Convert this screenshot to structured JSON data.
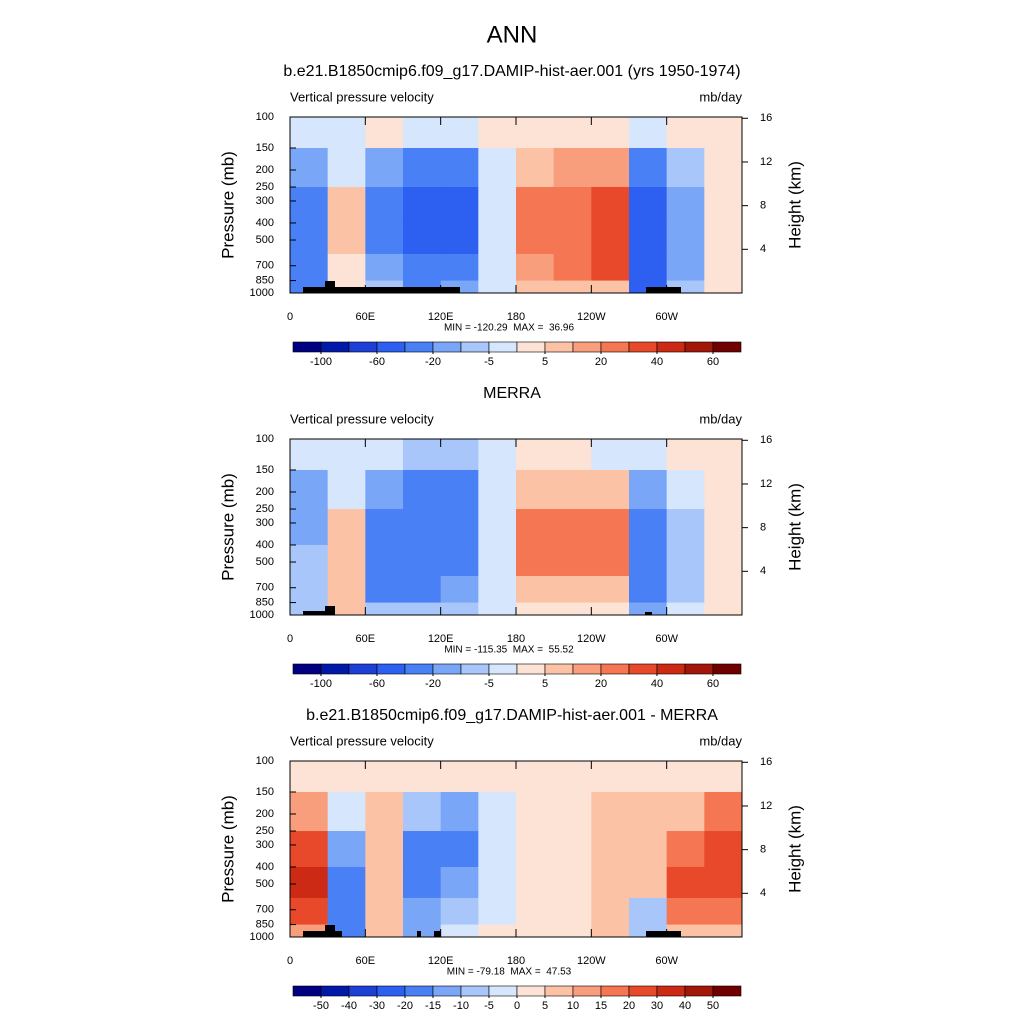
{
  "title": "ANN",
  "chart_data": [
    {
      "type": "contour",
      "title": "b.e21.B1850cmip6.f09_g17.DAMIP-hist-aer.001 (yrs 1950-1974)",
      "left_string": "Vertical pressure velocity",
      "right_string": "mb/day",
      "ylabel": "Pressure (mb)",
      "y2label": "Height (km)",
      "stats": "MIN = -120.29  MAX =  36.96",
      "xlim": [
        0,
        360
      ],
      "xticks": [
        0,
        {
          "value": 60,
          "label": "60E"
        },
        {
          "value": 120,
          "label": "120E"
        },
        180,
        {
          "value": 240,
          "label": "120W"
        },
        {
          "value": 300,
          "label": "60W"
        }
      ],
      "ylim": [
        100,
        1000
      ],
      "log_y": true,
      "yticks": [
        100,
        150,
        200,
        250,
        300,
        400,
        500,
        700,
        850,
        1000
      ],
      "y2ticks": [
        4,
        8,
        12,
        16
      ],
      "x_edges": [
        0,
        30,
        60,
        90,
        120,
        150,
        180,
        210,
        240,
        270,
        300,
        330,
        360
      ],
      "y_edges": [
        100,
        150,
        250,
        400,
        600,
        850,
        1000
      ],
      "z": [
        [
          -3,
          -3,
          2,
          -5,
          -5,
          2,
          3,
          3,
          3,
          -5,
          2,
          2
        ],
        [
          -20,
          -5,
          -20,
          -40,
          -40,
          -5,
          10,
          15,
          15,
          -30,
          -10,
          2
        ],
        [
          -40,
          5,
          -40,
          -60,
          -60,
          -5,
          20,
          25,
          30,
          -50,
          -20,
          2
        ],
        [
          -40,
          5,
          -40,
          -60,
          -50,
          -5,
          20,
          25,
          35,
          -50,
          -20,
          2
        ],
        [
          -40,
          3,
          -20,
          -40,
          -40,
          -5,
          15,
          20,
          30,
          -60,
          -20,
          2
        ],
        [
          -30,
          0,
          -10,
          -40,
          -20,
          -5,
          5,
          10,
          10,
          -60,
          -10,
          0
        ]
      ],
      "colorbar_ticks": [
        -100,
        -60,
        -20,
        -5,
        5,
        20,
        40,
        60
      ],
      "colors": [
        "#000080",
        "#0019a8",
        "#1e3fd6",
        "#2d5ff0",
        "#4a80f5",
        "#7aa6f8",
        "#a8c6fa",
        "#d6e6fd",
        "#fde3d5",
        "#fbc2a6",
        "#f89e7c",
        "#f47652",
        "#e8492a",
        "#cc2a14",
        "#a3160a",
        "#700000"
      ]
    },
    {
      "type": "contour",
      "title": "MERRA",
      "left_string": "Vertical pressure velocity",
      "right_string": "mb/day",
      "ylabel": "Pressure (mb)",
      "y2label": "Height (km)",
      "stats": "MIN = -115.35  MAX =  55.52",
      "xlim": [
        0,
        360
      ],
      "xticks": [
        0,
        {
          "value": 60,
          "label": "60E"
        },
        {
          "value": 120,
          "label": "120E"
        },
        180,
        {
          "value": 240,
          "label": "120W"
        },
        {
          "value": 300,
          "label": "60W"
        }
      ],
      "ylim": [
        100,
        1000
      ],
      "log_y": true,
      "yticks": [
        100,
        150,
        200,
        250,
        300,
        400,
        500,
        700,
        850,
        1000
      ],
      "y2ticks": [
        4,
        8,
        12,
        16
      ],
      "x_edges": [
        0,
        30,
        60,
        90,
        120,
        150,
        180,
        210,
        240,
        270,
        300,
        330,
        360
      ],
      "y_edges": [
        100,
        150,
        250,
        400,
        600,
        850,
        1000
      ],
      "z": [
        [
          -5,
          -5,
          -5,
          -10,
          -10,
          -3,
          3,
          3,
          -3,
          -3,
          3,
          3
        ],
        [
          -20,
          -5,
          -20,
          -30,
          -30,
          -5,
          5,
          10,
          5,
          -20,
          -5,
          2
        ],
        [
          -20,
          5,
          -30,
          -40,
          -40,
          -5,
          20,
          25,
          20,
          -40,
          -10,
          2
        ],
        [
          -10,
          10,
          -30,
          -40,
          -40,
          -5,
          20,
          25,
          20,
          -40,
          -10,
          2
        ],
        [
          -10,
          10,
          -30,
          -30,
          -20,
          -5,
          5,
          10,
          5,
          -40,
          -10,
          2
        ],
        [
          -10,
          5,
          -10,
          -10,
          -10,
          -5,
          2,
          2,
          2,
          -20,
          -5,
          0
        ]
      ],
      "colorbar_ticks": [
        -100,
        -60,
        -20,
        -5,
        5,
        20,
        40,
        60
      ],
      "colors": [
        "#000080",
        "#0019a8",
        "#1e3fd6",
        "#2d5ff0",
        "#4a80f5",
        "#7aa6f8",
        "#a8c6fa",
        "#d6e6fd",
        "#fde3d5",
        "#fbc2a6",
        "#f89e7c",
        "#f47652",
        "#e8492a",
        "#cc2a14",
        "#a3160a",
        "#700000"
      ]
    },
    {
      "type": "contour",
      "title": "b.e21.B1850cmip6.f09_g17.DAMIP-hist-aer.001 - MERRA",
      "left_string": "Vertical pressure velocity",
      "right_string": "mb/day",
      "ylabel": "Pressure (mb)",
      "y2label": "Height (km)",
      "stats": "MIN = -79.18  MAX =  47.53",
      "xlim": [
        0,
        360
      ],
      "xticks": [
        0,
        {
          "value": 60,
          "label": "60E"
        },
        {
          "value": 120,
          "label": "120E"
        },
        180,
        {
          "value": 240,
          "label": "120W"
        },
        {
          "value": 300,
          "label": "60W"
        }
      ],
      "ylim": [
        100,
        1000
      ],
      "log_y": true,
      "yticks": [
        100,
        150,
        200,
        250,
        300,
        400,
        500,
        700,
        850,
        1000
      ],
      "y2ticks": [
        4,
        8,
        12,
        16
      ],
      "x_edges": [
        0,
        30,
        60,
        90,
        120,
        150,
        180,
        210,
        240,
        270,
        300,
        330,
        360
      ],
      "y_edges": [
        100,
        150,
        250,
        400,
        600,
        850,
        1000
      ],
      "z": [
        [
          3,
          3,
          3,
          3,
          3,
          3,
          2,
          2,
          3,
          3,
          3,
          3
        ],
        [
          10,
          -5,
          5,
          -10,
          -15,
          -5,
          2,
          3,
          5,
          5,
          5,
          15
        ],
        [
          25,
          -15,
          5,
          -20,
          -20,
          -3,
          2,
          3,
          5,
          5,
          15,
          25
        ],
        [
          30,
          -20,
          5,
          -20,
          -15,
          -3,
          2,
          2,
          5,
          5,
          20,
          25
        ],
        [
          25,
          -20,
          5,
          -15,
          -10,
          -3,
          3,
          2,
          5,
          -10,
          15,
          15
        ],
        [
          10,
          -20,
          5,
          -15,
          -5,
          3,
          3,
          3,
          5,
          -10,
          5,
          5
        ]
      ],
      "colorbar_ticks": [
        -50,
        -40,
        -30,
        -20,
        -15,
        -10,
        -5,
        0,
        5,
        10,
        15,
        20,
        30,
        40,
        50
      ],
      "colors": [
        "#000080",
        "#0019a8",
        "#1e3fd6",
        "#2d5ff0",
        "#4a80f5",
        "#7aa6f8",
        "#a8c6fa",
        "#d6e6fd",
        "#fde3d5",
        "#fbc2a6",
        "#f89e7c",
        "#f47652",
        "#e8492a",
        "#cc2a14",
        "#a3160a",
        "#700000"
      ]
    }
  ]
}
